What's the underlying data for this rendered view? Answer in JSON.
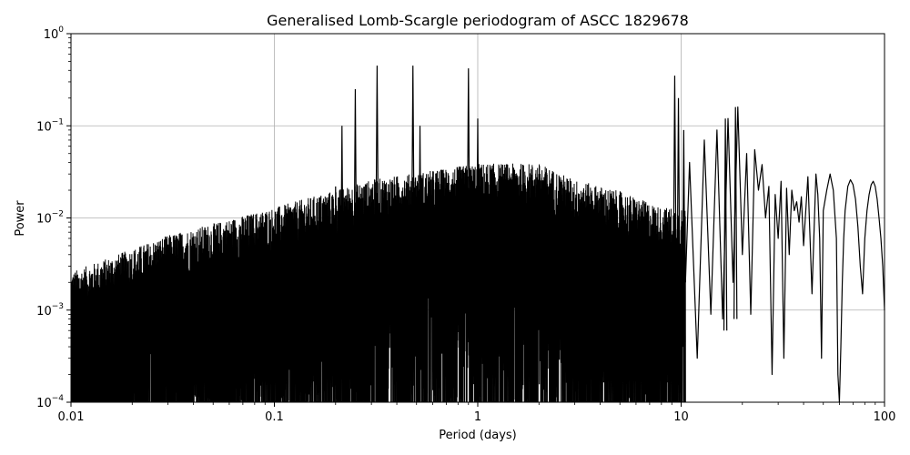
{
  "chart_data": {
    "type": "line",
    "title": "Generalised Lomb-Scargle periodogram of ASCC 1829678",
    "xlabel": "Period (days)",
    "ylabel": "Power",
    "xscale": "log",
    "yscale": "log",
    "xlim": [
      0.01,
      100
    ],
    "ylim": [
      0.0001,
      1
    ],
    "grid": true,
    "line_color": "#000000",
    "grid_color": "#b0b0b0",
    "x_ticks": [
      {
        "value": 0.01,
        "label": "0.01"
      },
      {
        "value": 0.1,
        "label": "0.1"
      },
      {
        "value": 1,
        "label": "1"
      },
      {
        "value": 10,
        "label": "10"
      },
      {
        "value": 100,
        "label": "100"
      }
    ],
    "y_ticks": [
      {
        "value": 0.0001,
        "base": "10",
        "exp": "−4"
      },
      {
        "value": 0.001,
        "base": "10",
        "exp": "−3"
      },
      {
        "value": 0.01,
        "base": "10",
        "exp": "−2"
      },
      {
        "value": 0.1,
        "base": "10",
        "exp": "−1"
      },
      {
        "value": 1,
        "base": "10",
        "exp": "0"
      }
    ],
    "noise_envelope": {
      "period": [
        0.01,
        0.03,
        0.1,
        0.3,
        1,
        2,
        3,
        5,
        8
      ],
      "upper_power": [
        0.002,
        0.005,
        0.01,
        0.02,
        0.03,
        0.03,
        0.02,
        0.015,
        0.01
      ]
    },
    "peaks": [
      {
        "period": 0.2,
        "power": 0.022
      },
      {
        "period": 0.215,
        "power": 0.1
      },
      {
        "period": 0.25,
        "power": 0.25
      },
      {
        "period": 0.32,
        "power": 0.45
      },
      {
        "period": 0.48,
        "power": 0.45
      },
      {
        "period": 0.52,
        "power": 0.1
      },
      {
        "period": 0.9,
        "power": 0.42
      },
      {
        "period": 1.0,
        "power": 0.12
      },
      {
        "period": 9.3,
        "power": 0.35
      },
      {
        "period": 9.7,
        "power": 0.2
      },
      {
        "period": 10.3,
        "power": 0.09
      },
      {
        "period": 16.5,
        "power": 0.12
      },
      {
        "period": 18.5,
        "power": 0.16
      }
    ],
    "long_period_curve": {
      "period": [
        10.5,
        11,
        12,
        13,
        14,
        15,
        16,
        17,
        18,
        19,
        20,
        21,
        22,
        23,
        24,
        25,
        26,
        27,
        28,
        29,
        30,
        31,
        32,
        33,
        34,
        35,
        36,
        37,
        38,
        39,
        40,
        42,
        44,
        46,
        47,
        48,
        49,
        50,
        52,
        54,
        56,
        58,
        59,
        60,
        61,
        62,
        63,
        64,
        66,
        68,
        70,
        72,
        74,
        76,
        78,
        80,
        82,
        84,
        86,
        88,
        90,
        92,
        94,
        96,
        98,
        100
      ],
      "power": [
        0.002,
        0.04,
        0.0003,
        0.07,
        0.0009,
        0.09,
        0.0008,
        0.12,
        0.002,
        0.16,
        0.004,
        0.05,
        0.0009,
        0.055,
        0.02,
        0.038,
        0.01,
        0.022,
        0.0002,
        0.018,
        0.006,
        0.025,
        0.0003,
        0.021,
        0.004,
        0.02,
        0.012,
        0.015,
        0.009,
        0.017,
        0.005,
        0.028,
        0.0015,
        0.03,
        0.018,
        0.006,
        0.0003,
        0.012,
        0.02,
        0.03,
        0.02,
        0.006,
        0.0002,
        0.0001,
        0.0004,
        0.002,
        0.006,
        0.012,
        0.022,
        0.026,
        0.023,
        0.016,
        0.008,
        0.003,
        0.0015,
        0.006,
        0.012,
        0.018,
        0.023,
        0.025,
        0.022,
        0.016,
        0.01,
        0.006,
        0.003,
        0.001
      ]
    }
  }
}
